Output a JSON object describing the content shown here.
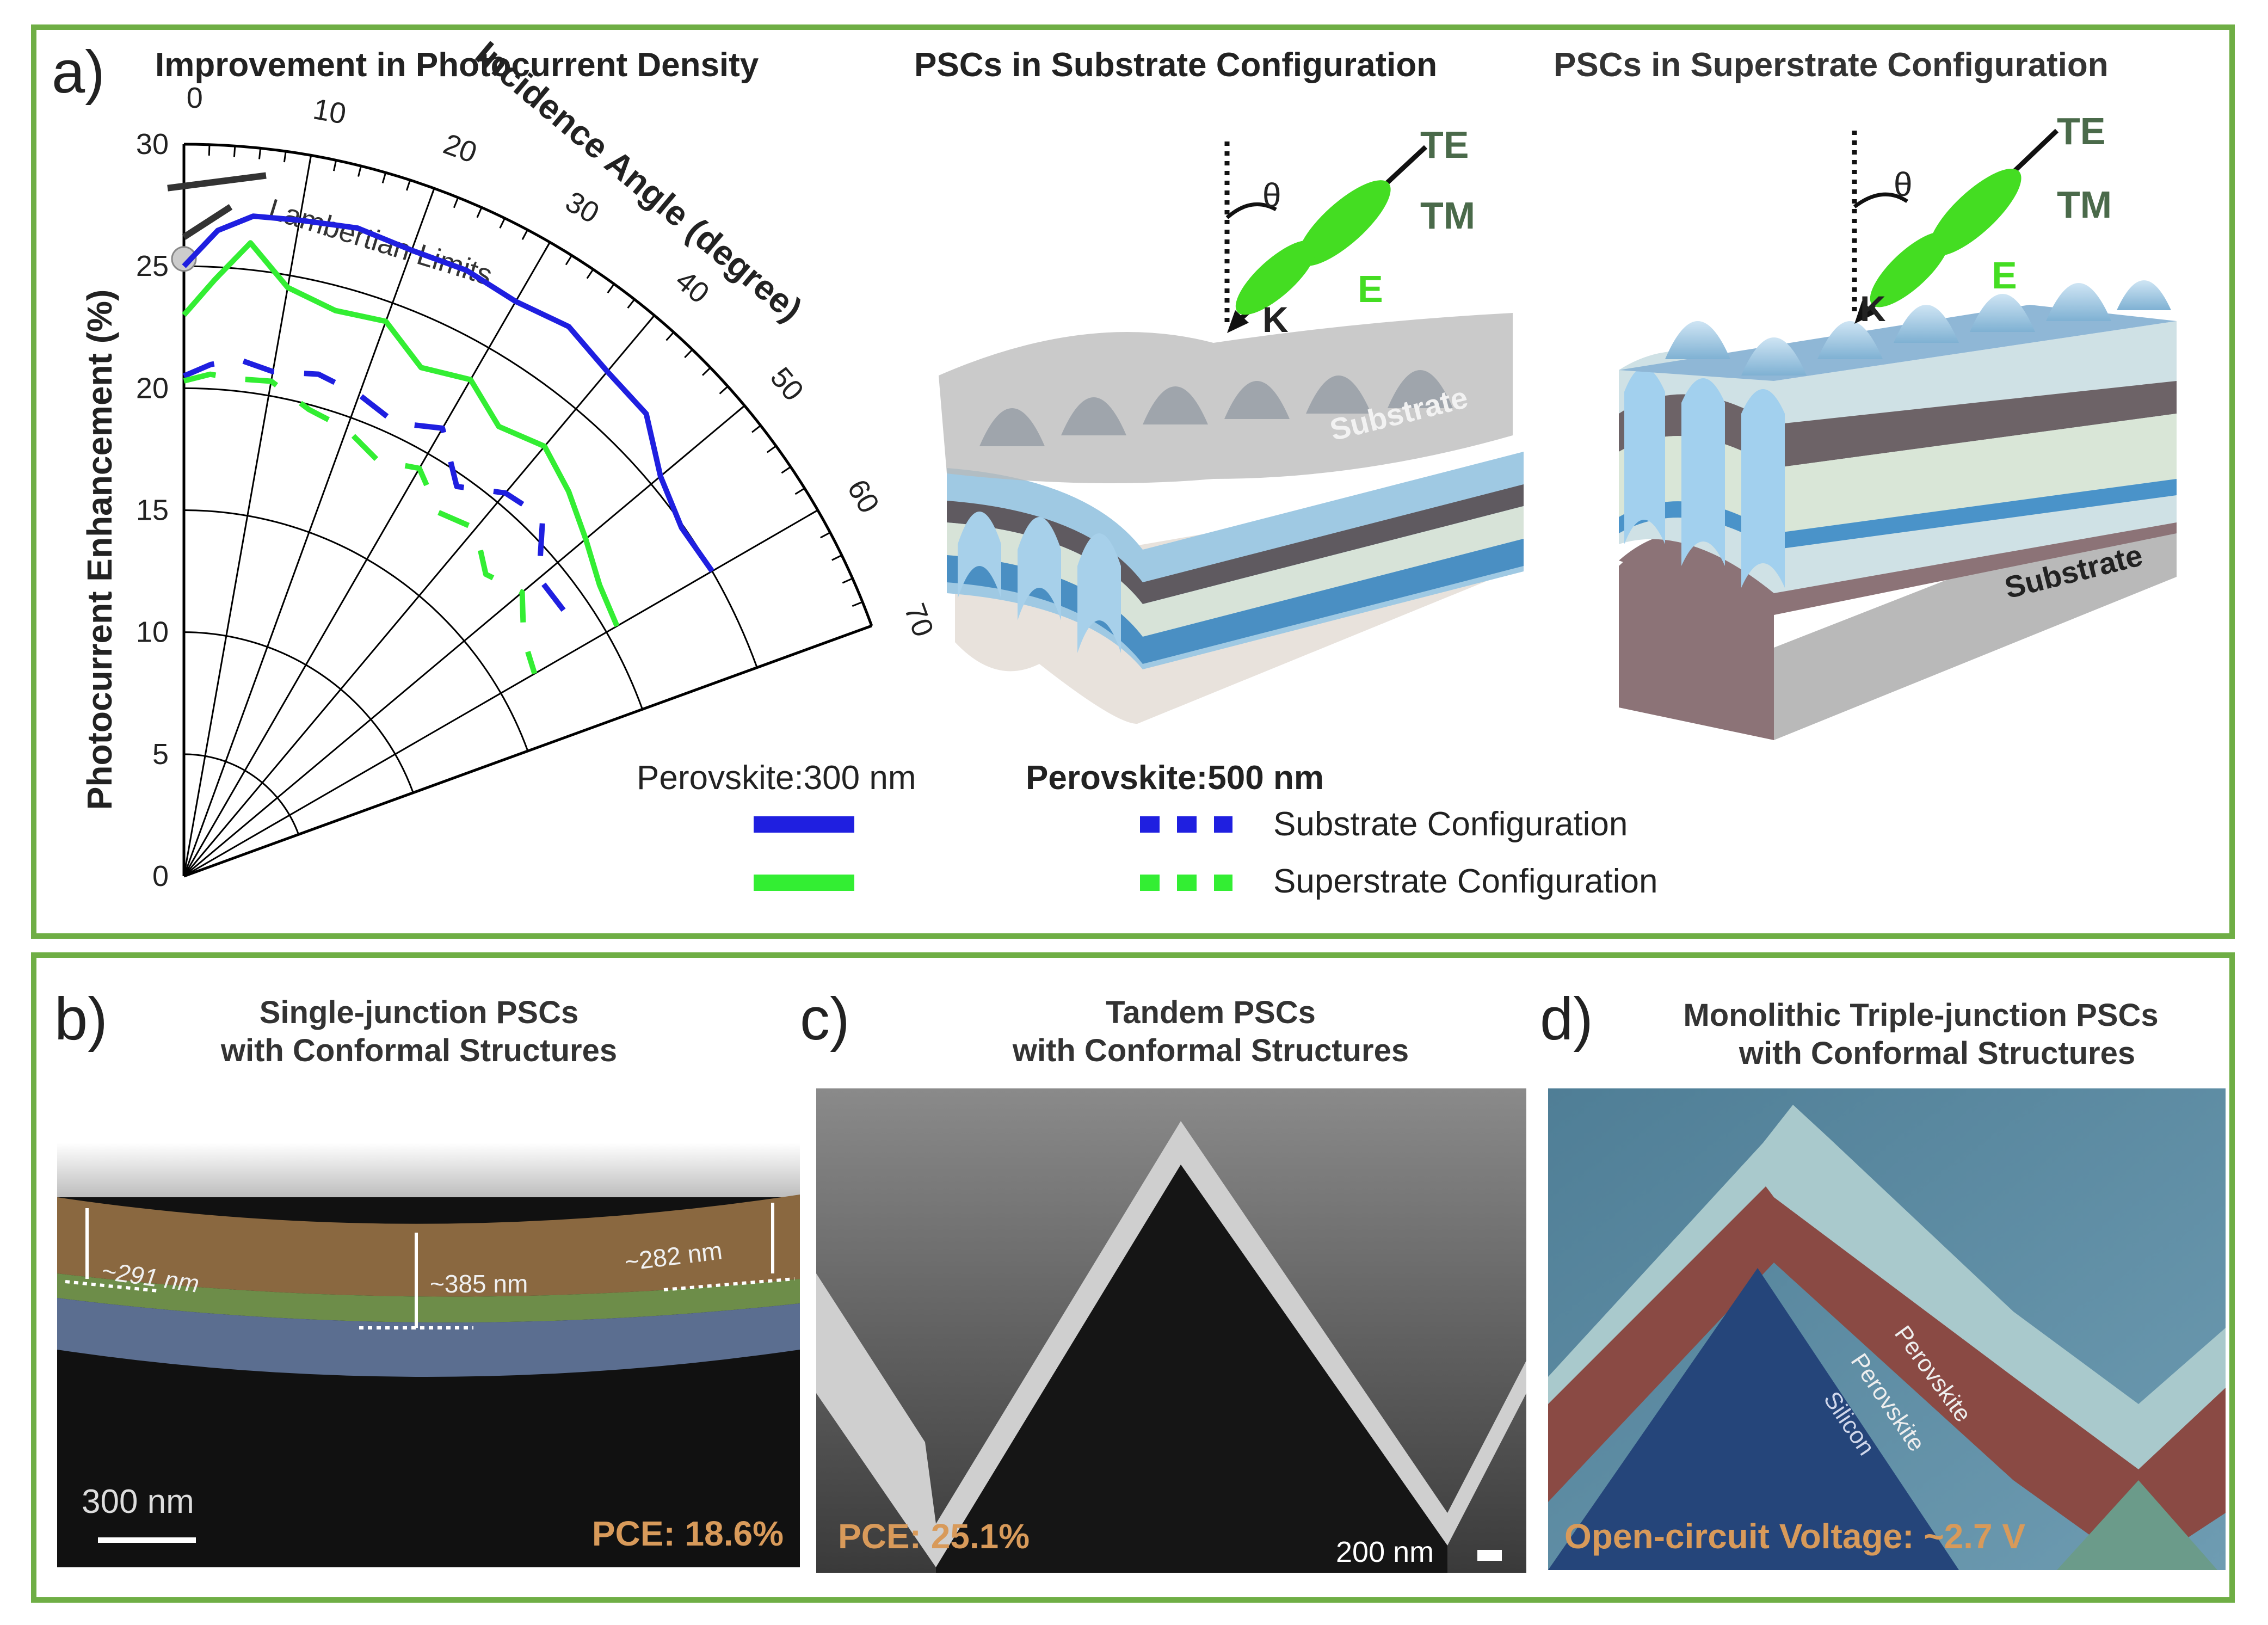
{
  "panel_a": {
    "letter": "a)",
    "chart_title": "Improvement in Photocurrent Density",
    "substrate_title": "PSCs in Substrate Configuration",
    "superstrate_title": "PSCs in Superstrate Configuration",
    "lambertian_label": "Lambertian Limits",
    "legend_300": "Perovskite:300 nm",
    "legend_500": "Perovskite:500 nm",
    "legend_substrate": "Substrate Configuration",
    "legend_superstrate": "Superstrate Configuration",
    "diagram_labels": {
      "te": "TE",
      "tm": "TM",
      "theta": "θ",
      "k": "K",
      "e": "E",
      "substrate": "Substrate"
    }
  },
  "chart_data": {
    "type": "line",
    "coordinate_system": "polar",
    "radial_label": "Photocurrent Enhancement (%)",
    "angular_label": "Incidence Angle (degree)",
    "radial_ticks": [
      0,
      5,
      10,
      15,
      20,
      25,
      30
    ],
    "angular_ticks": [
      0,
      10,
      20,
      30,
      40,
      50,
      60,
      70
    ],
    "rlim": [
      0,
      30
    ],
    "thetalim": [
      0,
      70
    ],
    "grid": true,
    "lambertian_limit": 25.3,
    "series": [
      {
        "name": "Perovskite:300 nm, Substrate Configuration",
        "color": "#1f1fe0",
        "style": "solid",
        "theta": [
          0,
          3,
          6,
          10,
          15,
          20,
          25,
          30,
          35,
          40,
          45,
          50,
          55,
          60
        ],
        "r": [
          25,
          26.5,
          27.2,
          27.3,
          27.5,
          27.3,
          27.4,
          27.2,
          27.5,
          27.0,
          26.8,
          25.5,
          24.9,
          25.0
        ]
      },
      {
        "name": "Perovskite:300 nm, Superstrate Configuration",
        "color": "#33ee33",
        "style": "solid",
        "theta": [
          0,
          3,
          6,
          10,
          15,
          20,
          25,
          30,
          35,
          40,
          45,
          50,
          55,
          60
        ],
        "r": [
          23,
          24.5,
          26.1,
          24.5,
          24.0,
          24.2,
          23.0,
          23.5,
          22.5,
          23.0,
          22.3,
          21.5,
          20.8,
          20.5
        ]
      },
      {
        "name": "Perovskite:500 nm, Substrate Configuration",
        "color": "#1f1fe0",
        "style": "dashed",
        "theta": [
          0,
          3,
          6,
          10,
          15,
          20,
          25,
          30,
          35,
          40,
          45,
          50,
          55
        ],
        "r": [
          20.5,
          21.0,
          21.3,
          21.0,
          21.3,
          21.0,
          20.5,
          21.2,
          19.5,
          20.5,
          20.8,
          19.0,
          19.0
        ]
      },
      {
        "name": "Perovskite:500 nm, Superstrate Configuration",
        "color": "#33ee33",
        "style": "dashed",
        "theta": [
          0,
          3,
          6,
          10,
          15,
          20,
          25,
          30,
          35,
          40,
          45,
          50,
          55,
          60
        ],
        "r": [
          20.3,
          20.6,
          20.5,
          20.6,
          19.8,
          19.5,
          18.8,
          19.3,
          18.2,
          18.6,
          17.5,
          18.1,
          17.0,
          16.6
        ]
      }
    ]
  },
  "panel_b": {
    "letter": "b)",
    "title_line1": "Single-junction PSCs",
    "title_line2": "with Conformal Structures",
    "thickness_left": "~291 nm",
    "thickness_mid": "~385 nm",
    "thickness_right": "~282 nm",
    "scale_bar": "300 nm",
    "metric": "PCE: 18.6%"
  },
  "panel_c": {
    "letter": "c)",
    "title_line1": "Tandem PSCs",
    "title_line2": "with Conformal Structures",
    "scale_bar": "200 nm",
    "metric": "PCE: 25.1%"
  },
  "panel_d": {
    "letter": "d)",
    "title_line1": "Monolithic Triple-junction PSCs",
    "title_line2": "with Conformal Structures",
    "layer_1": "Perovskite",
    "layer_2": "Perovskite",
    "layer_3": "Silicon",
    "metric": "Open-circuit Voltage: ~2.7 V"
  },
  "colors": {
    "frame": "#6fae45",
    "blue_series": "#1f1fe0",
    "green_series": "#33ee33",
    "metric_text": "#d89a5a"
  }
}
